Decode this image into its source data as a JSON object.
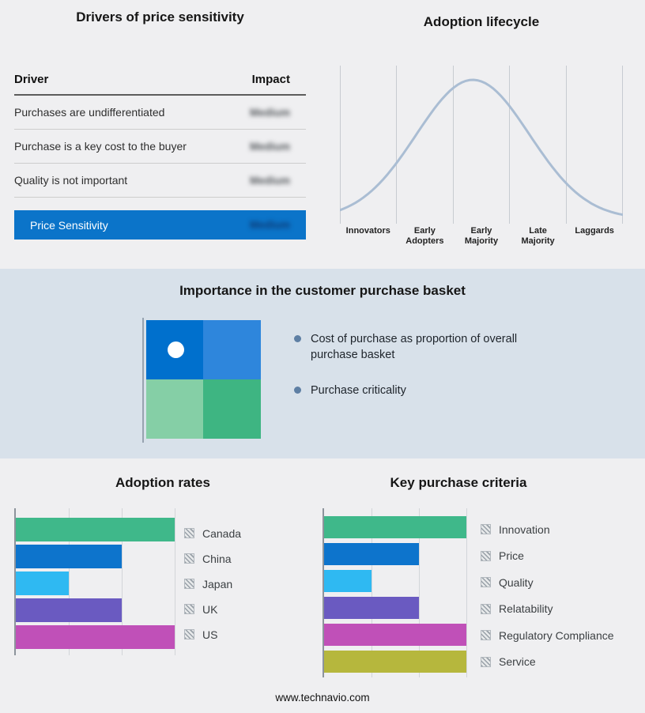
{
  "drivers_panel": {
    "title": "Drivers of price sensitivity",
    "columns": {
      "driver": "Driver",
      "impact": "Impact"
    },
    "rows": [
      {
        "driver": "Purchases are undifferentiated",
        "impact": "Medium"
      },
      {
        "driver": "Purchase is a key cost to the buyer",
        "impact": "Medium"
      },
      {
        "driver": "Quality is not important",
        "impact": "Medium"
      }
    ],
    "summary": {
      "label": "Price Sensitivity",
      "impact": "Medium",
      "bar_color": "#0b74c9"
    }
  },
  "lifecycle_panel": {
    "title": "Adoption lifecycle",
    "curve_color": "#aabdd3",
    "stages": [
      {
        "line1": "Innovators",
        "line2": ""
      },
      {
        "line1": "Early",
        "line2": "Adopters"
      },
      {
        "line1": "Early",
        "line2": "Majority"
      },
      {
        "line1": "Late",
        "line2": "Majority"
      },
      {
        "line1": "Laggards",
        "line2": ""
      }
    ]
  },
  "basket_panel": {
    "title": "Importance in the customer purchase basket",
    "bullets": [
      "Cost of purchase as proportion of overall purchase basket",
      "Purchase criticality"
    ],
    "matrix_colors": {
      "top_left": "#0070cd",
      "top_right": "#2e86dc",
      "bottom_left": "#85cfa6",
      "bottom_right": "#3eb582"
    }
  },
  "footer": {
    "url": "www.technavio.com"
  },
  "chart_data": [
    {
      "type": "line",
      "title": "Adoption lifecycle",
      "categories": [
        "Innovators",
        "Early Adopters",
        "Early Majority",
        "Late Majority",
        "Laggards"
      ],
      "curve": {
        "shape": "bell",
        "mean": 0.47,
        "sigma": 0.2
      },
      "grid": "vertical stage dividers",
      "legend": "none"
    },
    {
      "type": "bar",
      "orientation": "horizontal",
      "title": "Adoption rates",
      "categories": [
        "Canada",
        "China",
        "Japan",
        "UK",
        "US"
      ],
      "values": [
        3,
        2,
        1,
        2,
        3
      ],
      "xlim": [
        0,
        3.6
      ],
      "colors": [
        "#3fb88a",
        "#0d74cc",
        "#2fb9f2",
        "#6a5ac1",
        "#c050b8"
      ],
      "grid": "vertical",
      "legend_position": "right"
    },
    {
      "type": "bar",
      "orientation": "horizontal",
      "title": "Key purchase criteria",
      "categories": [
        "Innovation",
        "Price",
        "Quality",
        "Relatability",
        "Regulatory Compliance",
        "Service"
      ],
      "values": [
        3,
        2,
        1,
        2,
        3,
        3
      ],
      "xlim": [
        0,
        3.6
      ],
      "colors": [
        "#3fb88a",
        "#0d74cc",
        "#2fb9f2",
        "#6a5ac1",
        "#c050b8",
        "#b6b73d"
      ],
      "grid": "vertical",
      "legend_position": "right"
    }
  ]
}
